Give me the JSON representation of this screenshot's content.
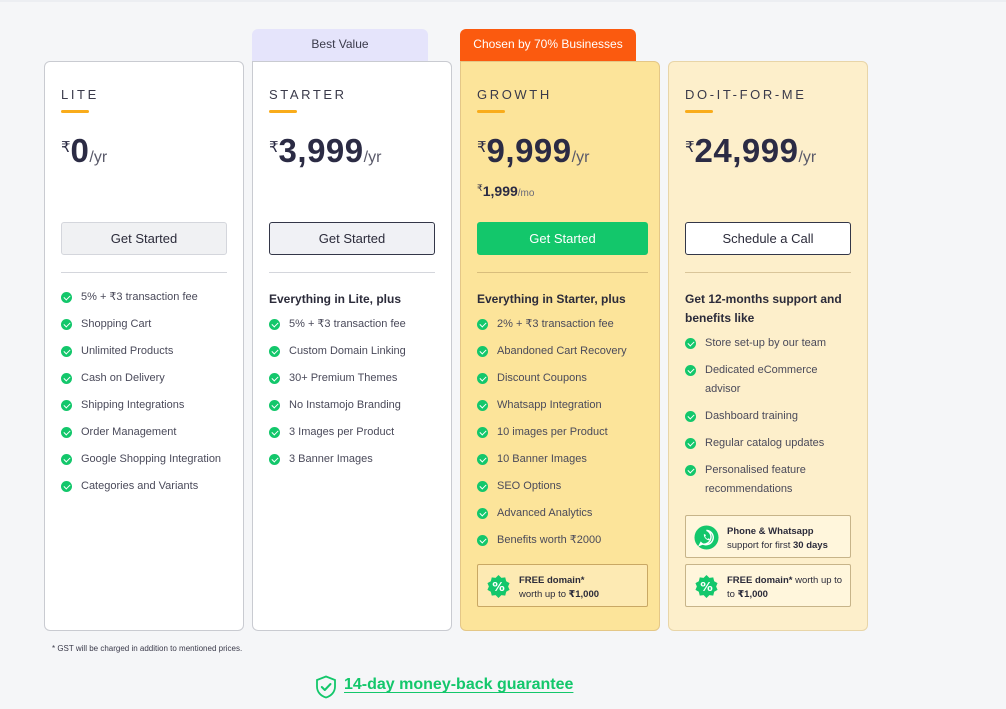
{
  "currency_symbol": "₹",
  "tags": {
    "best_value": "Best Value",
    "chosen": "Chosen by 70% Businesses"
  },
  "plans": {
    "lite": {
      "name": "LITE",
      "price": "0",
      "per": "/yr",
      "cta": "Get Started",
      "features": [
        "5% + ₹3 transaction fee",
        "Shopping Cart",
        "Unlimited Products",
        "Cash on Delivery",
        "Shipping Integrations",
        "Order Management",
        "Google Shopping Integration",
        "Categories and Variants"
      ]
    },
    "starter": {
      "name": "STARTER",
      "price": "3,999",
      "per": "/yr",
      "cta": "Get Started",
      "intro": "Everything in Lite, plus",
      "features": [
        "5% + ₹3 transaction fee",
        "Custom Domain Linking",
        "30+ Premium Themes",
        "No Instamojo Branding",
        "3 Images per Product",
        "3 Banner Images"
      ]
    },
    "growth": {
      "name": "GROWTH",
      "price": "9,999",
      "per": "/yr",
      "monthly_price": "1,999",
      "monthly_per": "/mo",
      "cta": "Get Started",
      "intro": "Everything in Starter, plus",
      "features": [
        "2% + ₹3 transaction fee",
        "Abandoned Cart Recovery",
        "Discount Coupons",
        "Whatsapp Integration",
        "10 images per Product",
        "10 Banner Images",
        "SEO Options",
        "Advanced Analytics",
        "Benefits worth ₹2000"
      ],
      "promo": {
        "bold": "FREE domain*",
        "rest": "worth up to",
        "amount": "₹1,000"
      }
    },
    "diy": {
      "name": "DO-IT-FOR-ME",
      "price": "24,999",
      "per": "/yr",
      "cta": "Schedule a Call",
      "intro": "Get 12-months support and benefits like",
      "features": [
        "Store set-up by our team",
        "Dedicated eCommerce advisor",
        "Dashboard training",
        "Regular catalog updates",
        "Personalised feature recommendations"
      ],
      "support": {
        "title": "Phone & Whatsapp",
        "rest": "support for first",
        "days": "30 days"
      },
      "promo": {
        "bold": "FREE domain*",
        "rest": "worth up to",
        "amount": "₹1,000"
      }
    }
  },
  "note": "* GST will be charged in addition to mentioned prices.",
  "guarantee": "14-day money-back guarantee",
  "colors": {
    "accent_green": "#13c76b",
    "accent_orange": "#fb5a0f",
    "bar_yellow": "#f9ac1b",
    "growth_bg": "#fce49a",
    "diy_bg": "#fdefcb",
    "best_value_bg": "#e5e4fb"
  }
}
